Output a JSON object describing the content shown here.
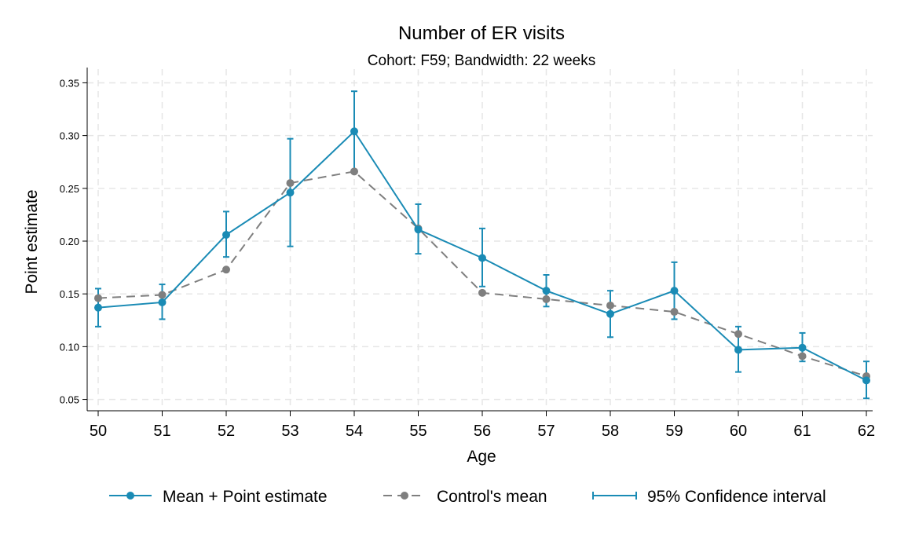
{
  "chart_data": {
    "type": "line",
    "title": "Number of ER visits",
    "subtitle": "Cohort: F59; Bandwidth: 22 weeks",
    "xlabel": "Age",
    "ylabel": "Point estimate",
    "x": [
      50,
      51,
      52,
      53,
      54,
      55,
      56,
      57,
      58,
      59,
      60,
      61,
      62
    ],
    "xlim": [
      50,
      62
    ],
    "ylim": [
      0.04,
      0.36
    ],
    "yticks": [
      "0.05",
      "0.10",
      "0.15",
      "0.20",
      "0.25",
      "0.30",
      "0.35"
    ],
    "grid": true,
    "legend_position": "bottom",
    "colors": {
      "estimate": "#1a8bb5",
      "control": "#7f7f7f"
    },
    "series": [
      {
        "name": "Mean + Point estimate",
        "style": "solid",
        "values": [
          0.137,
          0.142,
          0.206,
          0.246,
          0.304,
          0.211,
          0.184,
          0.153,
          0.131,
          0.153,
          0.097,
          0.099,
          0.068
        ]
      },
      {
        "name": "Control's mean",
        "style": "dashed",
        "values": [
          0.146,
          0.149,
          0.173,
          0.255,
          0.266,
          0.212,
          0.151,
          0.145,
          0.139,
          0.133,
          0.112,
          0.091,
          0.072
        ]
      }
    ],
    "ci": {
      "name": "95% Confidence interval",
      "lower": [
        0.119,
        0.126,
        0.185,
        0.195,
        0.267,
        0.188,
        0.157,
        0.138,
        0.109,
        0.126,
        0.076,
        0.086,
        0.051
      ],
      "upper": [
        0.155,
        0.159,
        0.228,
        0.297,
        0.342,
        0.235,
        0.212,
        0.168,
        0.153,
        0.18,
        0.119,
        0.113,
        0.086
      ]
    }
  }
}
